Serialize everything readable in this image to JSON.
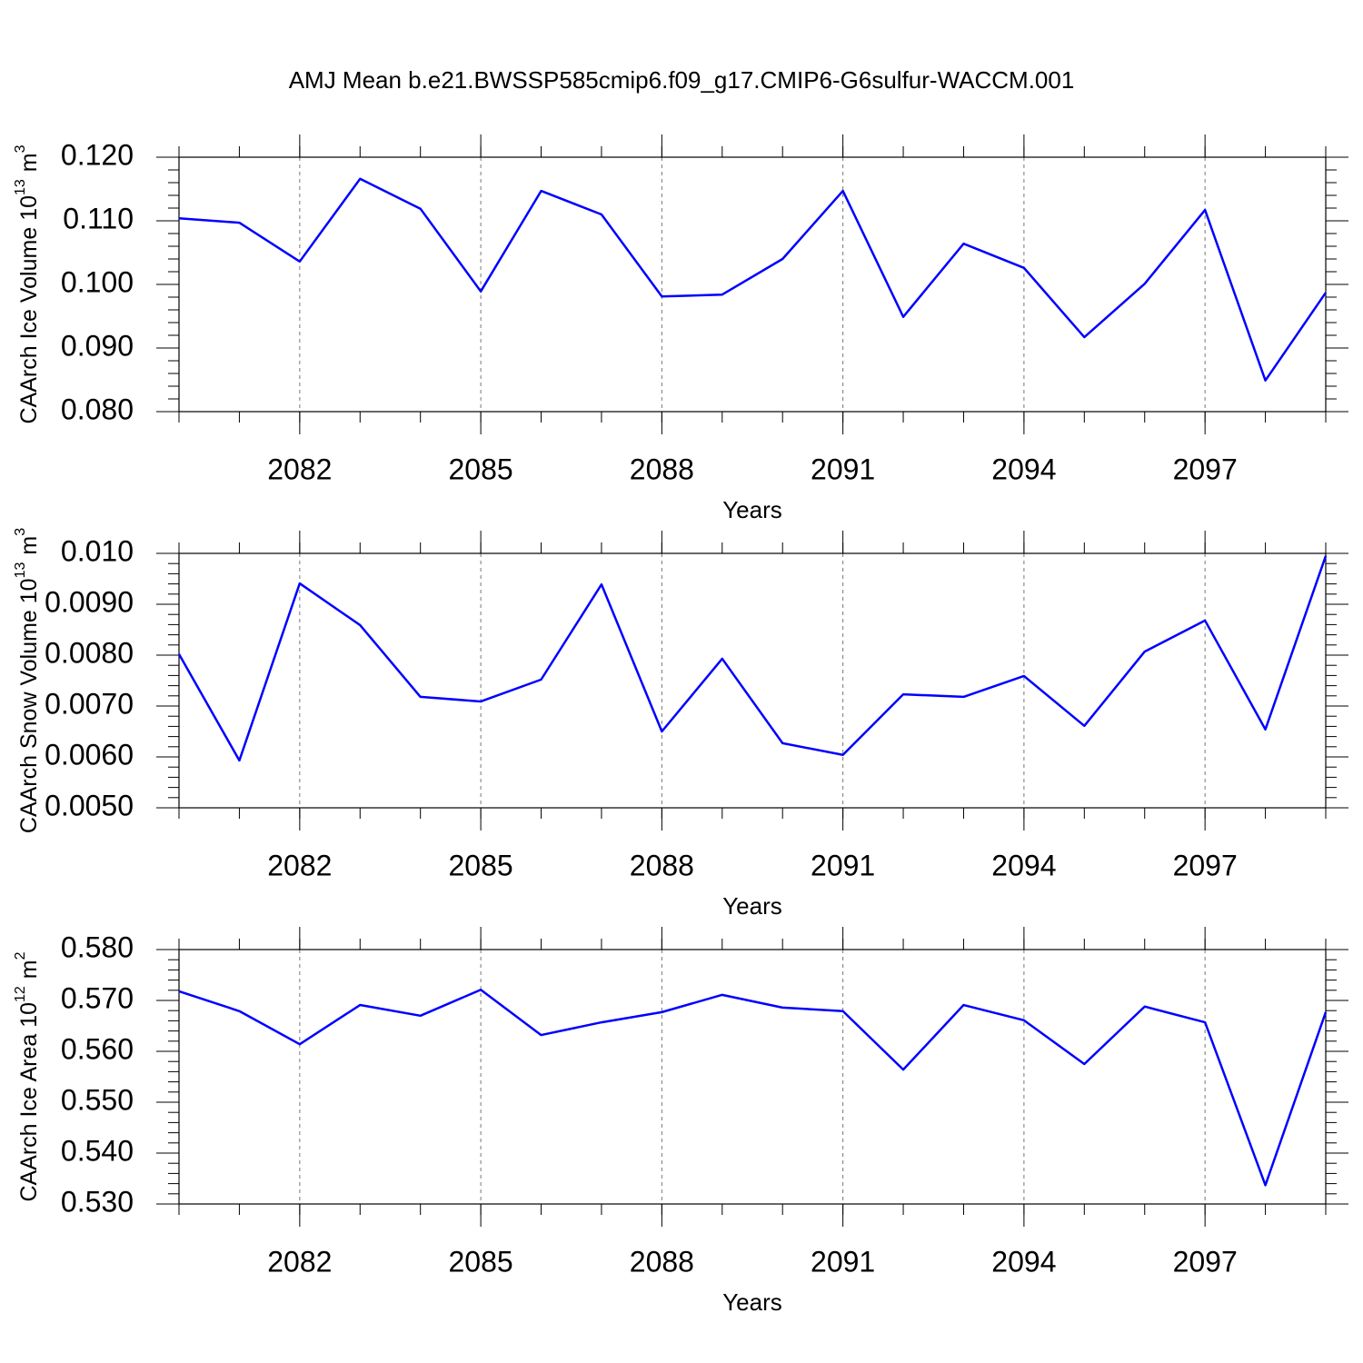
{
  "chart_data": [
    {
      "type": "line",
      "title": "AMJ Mean b.e21.BWSSP585cmip6.f09_g17.CMIP6-G6sulfur-WACCM.001",
      "xlabel": "Years",
      "ylabel": {
        "text": "CAArch Ice Volume 10",
        "exponent": "13",
        "unit": "m",
        "unit_exponent": "3"
      },
      "x": [
        2080,
        2081,
        2082,
        2083,
        2084,
        2085,
        2086,
        2087,
        2088,
        2089,
        2090,
        2091,
        2092,
        2093,
        2094,
        2095,
        2096,
        2097,
        2098,
        2099
      ],
      "series": [
        {
          "color": "#0000ff",
          "values": [
            0.1104,
            0.1097,
            0.1036,
            0.1166,
            0.1119,
            0.0989,
            0.1147,
            0.111,
            0.0981,
            0.0984,
            0.104,
            0.1147,
            0.0949,
            0.1064,
            0.1026,
            0.0917,
            0.1001,
            0.1117,
            0.0849,
            0.0987
          ]
        }
      ],
      "xlim": [
        2080,
        2099
      ],
      "xticks": [
        2082,
        2085,
        2088,
        2091,
        2094,
        2097
      ],
      "x_minor_step": 1,
      "ylim": [
        0.08,
        0.12
      ],
      "yticks": [
        {
          "value": 0.08,
          "label": "0.080"
        },
        {
          "value": 0.09,
          "label": "0.090"
        },
        {
          "value": 0.1,
          "label": "0.100"
        },
        {
          "value": 0.11,
          "label": "0.110"
        },
        {
          "value": 0.12,
          "label": "0.120"
        }
      ],
      "y_minor_step": 0.002,
      "grid": "x"
    },
    {
      "type": "line",
      "xlabel": "Years",
      "ylabel": {
        "text": "CAArch Snow Volume 10",
        "exponent": "13",
        "unit": "m",
        "unit_exponent": "3"
      },
      "x": [
        2080,
        2081,
        2082,
        2083,
        2084,
        2085,
        2086,
        2087,
        2088,
        2089,
        2090,
        2091,
        2092,
        2093,
        2094,
        2095,
        2096,
        2097,
        2098,
        2099
      ],
      "series": [
        {
          "color": "#0000ff",
          "values": [
            0.00802,
            0.00593,
            0.00941,
            0.00859,
            0.00718,
            0.00709,
            0.00752,
            0.00939,
            0.0065,
            0.00793,
            0.00627,
            0.00604,
            0.00723,
            0.00718,
            0.00759,
            0.00661,
            0.00807,
            0.00868,
            0.00654,
            0.00995
          ]
        }
      ],
      "xlim": [
        2080,
        2099
      ],
      "xticks": [
        2082,
        2085,
        2088,
        2091,
        2094,
        2097
      ],
      "x_minor_step": 1,
      "ylim": [
        0.005,
        0.01
      ],
      "yticks": [
        {
          "value": 0.005,
          "label": "0.0050"
        },
        {
          "value": 0.006,
          "label": "0.0060"
        },
        {
          "value": 0.007,
          "label": "0.0070"
        },
        {
          "value": 0.008,
          "label": "0.0080"
        },
        {
          "value": 0.009,
          "label": "0.0090"
        },
        {
          "value": 0.01,
          "label": "0.010"
        }
      ],
      "y_minor_step": 0.0002,
      "grid": "x"
    },
    {
      "type": "line",
      "xlabel": "Years",
      "ylabel": {
        "text": "CAArch Ice Area 10",
        "exponent": "12",
        "unit": "m",
        "unit_exponent": "2"
      },
      "x": [
        2080,
        2081,
        2082,
        2083,
        2084,
        2085,
        2086,
        2087,
        2088,
        2089,
        2090,
        2091,
        2092,
        2093,
        2094,
        2095,
        2096,
        2097,
        2098,
        2099
      ],
      "series": [
        {
          "color": "#0000ff",
          "values": [
            0.5718,
            0.5679,
            0.5614,
            0.5691,
            0.567,
            0.5721,
            0.5632,
            0.5657,
            0.5677,
            0.5711,
            0.5686,
            0.5679,
            0.5564,
            0.5691,
            0.5661,
            0.5575,
            0.5688,
            0.5657,
            0.5337,
            0.5677
          ]
        }
      ],
      "xlim": [
        2080,
        2099
      ],
      "xticks": [
        2082,
        2085,
        2088,
        2091,
        2094,
        2097
      ],
      "x_minor_step": 1,
      "ylim": [
        0.53,
        0.58
      ],
      "yticks": [
        {
          "value": 0.53,
          "label": "0.530"
        },
        {
          "value": 0.54,
          "label": "0.540"
        },
        {
          "value": 0.55,
          "label": "0.550"
        },
        {
          "value": 0.56,
          "label": "0.560"
        },
        {
          "value": 0.57,
          "label": "0.570"
        },
        {
          "value": 0.58,
          "label": "0.580"
        }
      ],
      "y_minor_step": 0.002,
      "grid": "x"
    }
  ]
}
